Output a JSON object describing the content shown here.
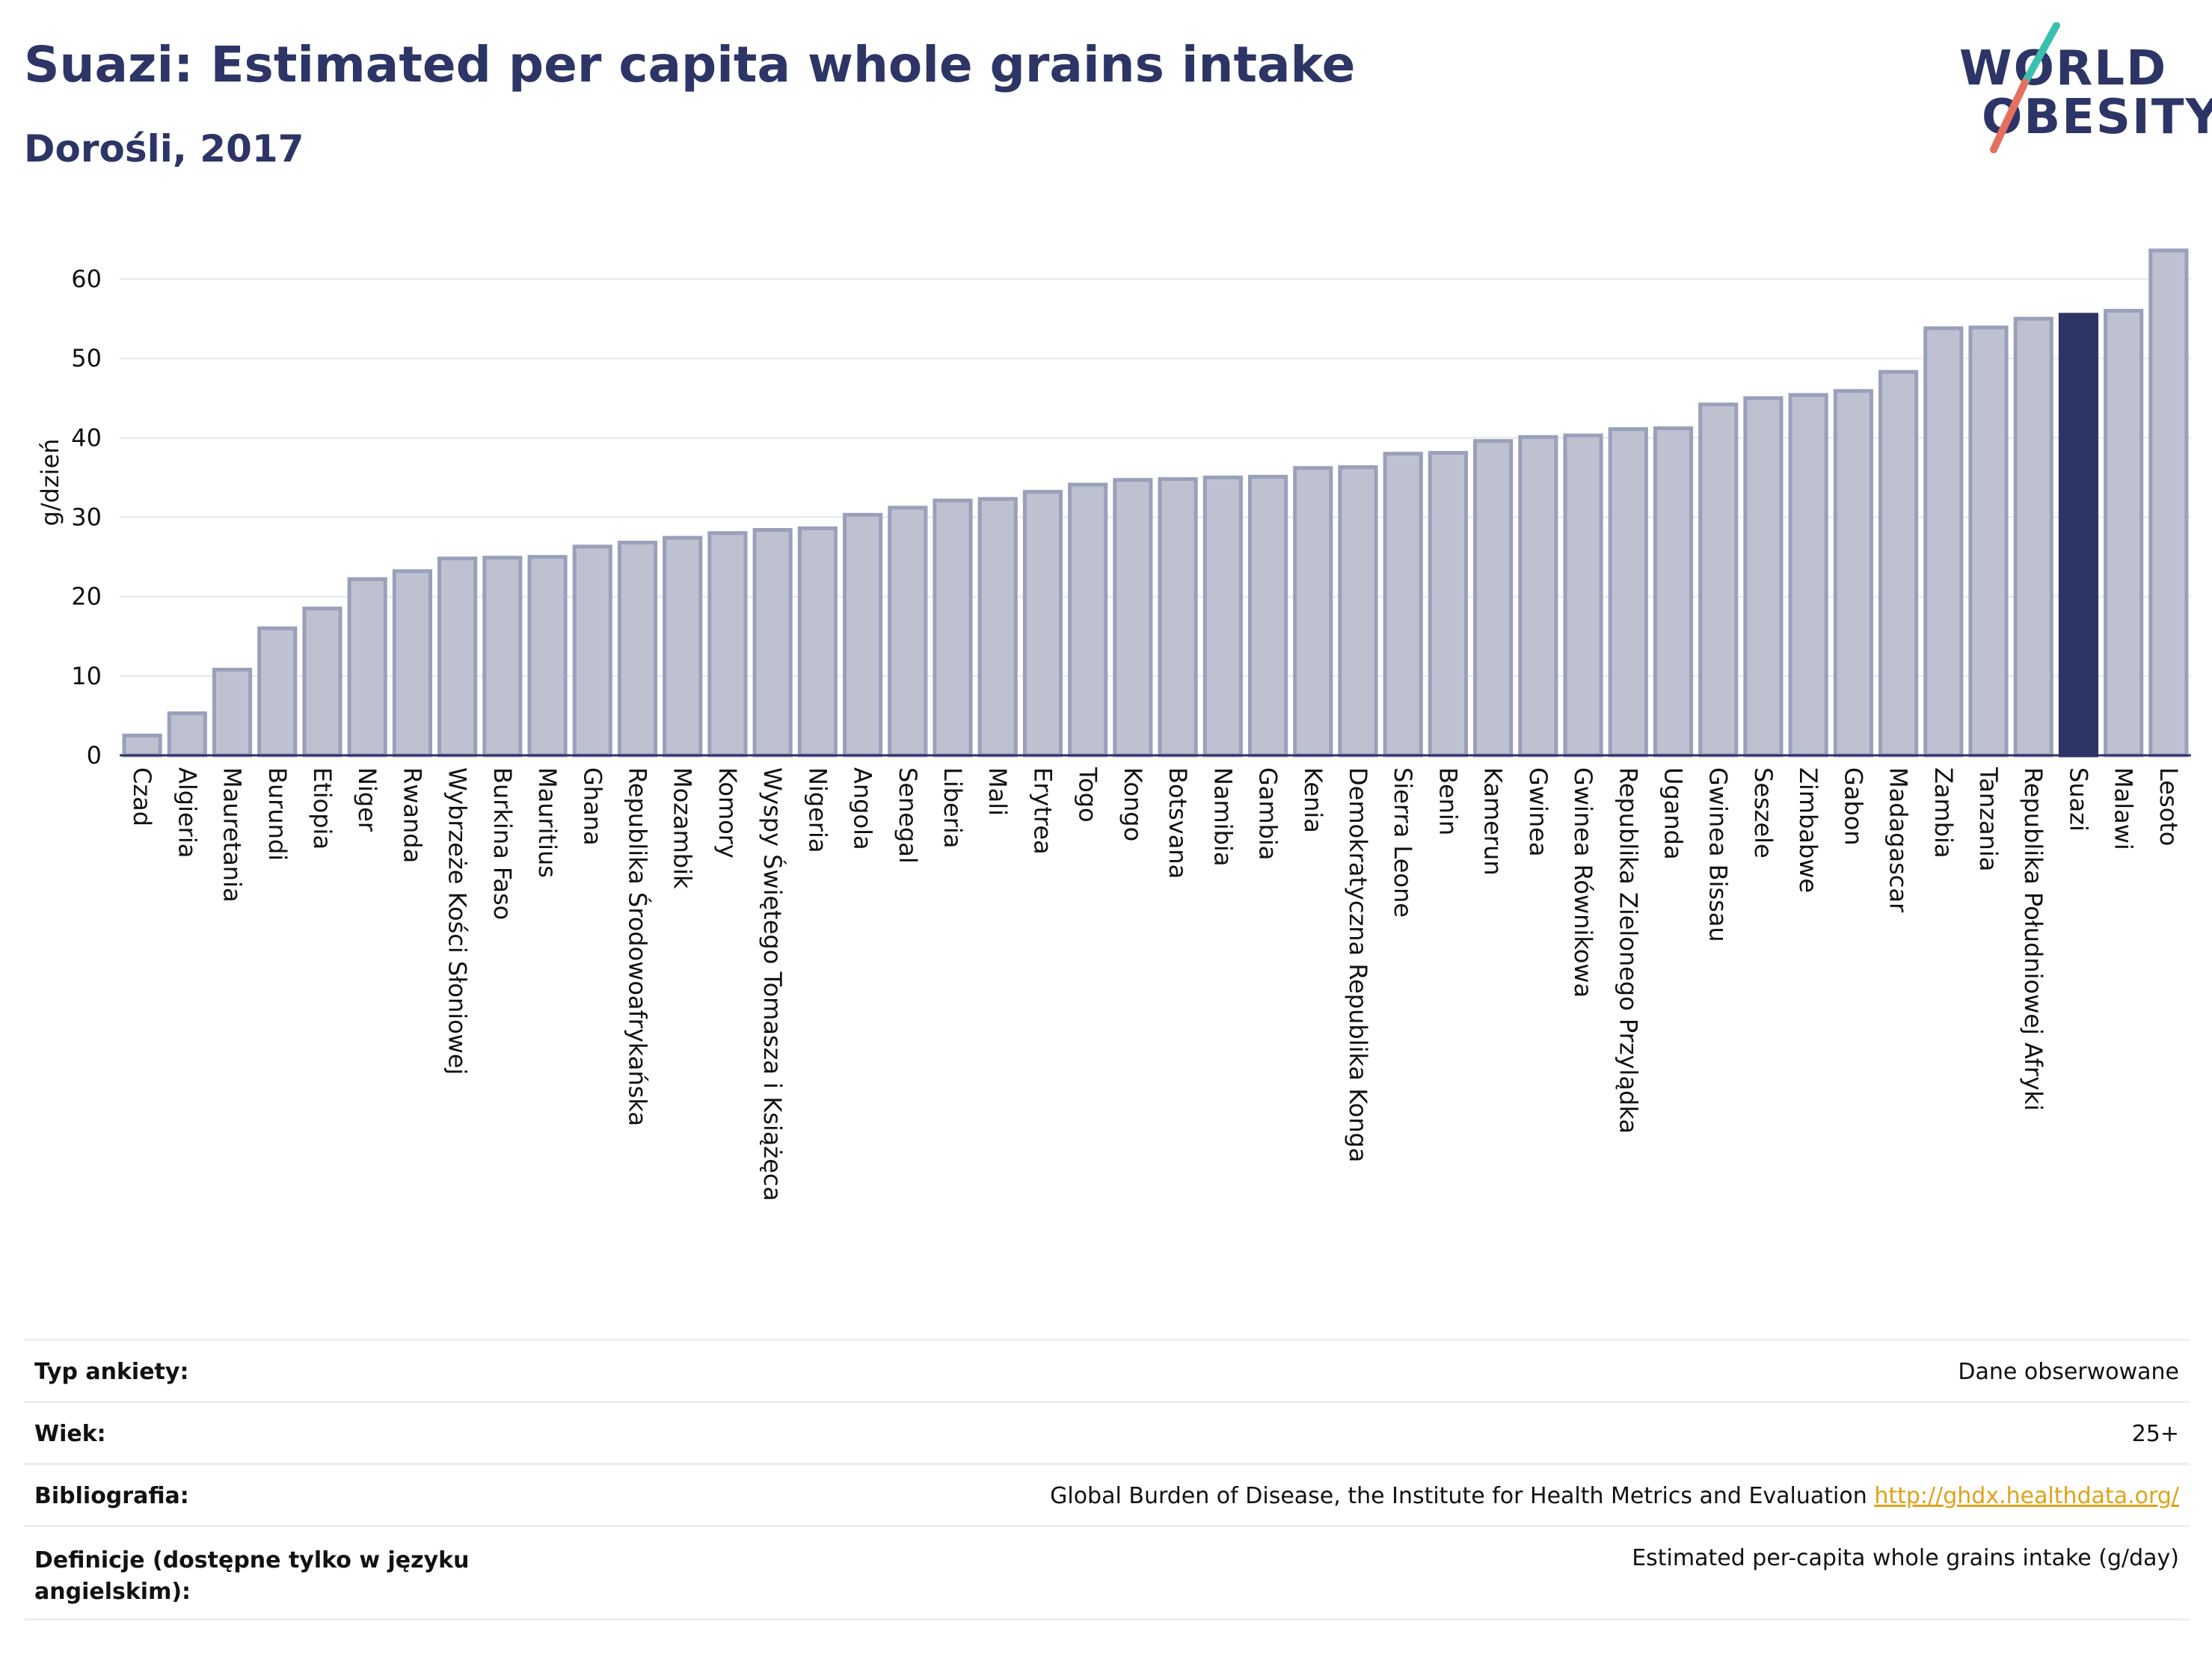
{
  "header": {
    "title": "Suazi: Estimated per capita whole grains intake",
    "subtitle": "Dorośli, 2017",
    "logo_line1": "WORLD",
    "logo_line2": "OBESITY"
  },
  "colors": {
    "title": "#2c3566",
    "bar": "#bdc1d0",
    "bar_edge": "#9aa0ba",
    "highlight": "#2c3566",
    "grid": "#e6e7ee",
    "logo_teal": "#3bbfb0",
    "logo_red": "#e5705f",
    "link": "#e0a21a"
  },
  "chart_data": {
    "type": "bar",
    "ylabel": "g/dzień",
    "ylim": [
      0,
      65
    ],
    "yticks": [
      0,
      10,
      20,
      30,
      40,
      50,
      60
    ],
    "grid": true,
    "highlight": "Suazi",
    "categories": [
      "Czad",
      "Algieria",
      "Mauretania",
      "Burundi",
      "Etiopia",
      "Niger",
      "Rwanda",
      "Wybrzeże Kości Słoniowej",
      "Burkina Faso",
      "Mauritius",
      "Ghana",
      "Republika Środowoafrykańska",
      "Mozambik",
      "Komory",
      "Wyspy Świętego Tomasza i Książęca",
      "Nigeria",
      "Angola",
      "Senegal",
      "Liberia",
      "Mali",
      "Erytrea",
      "Togo",
      "Kongo",
      "Botsvana",
      "Namibia",
      "Gambia",
      "Kenia",
      "Demokratyczna Republika Konga",
      "Sierra Leone",
      "Benin",
      "Kamerun",
      "Gwinea",
      "Gwinea Równikowa",
      "Republika Zielonego Przylądka",
      "Uganda",
      "Gwinea Bissau",
      "Seszele",
      "Zimbabwe",
      "Gabon",
      "Madagascar",
      "Zambia",
      "Tanzania",
      "Republika Południowej Afryki",
      "Suazi",
      "Malawi",
      "Lesoto"
    ],
    "values": [
      2.5,
      5.3,
      10.8,
      16.0,
      18.5,
      22.2,
      23.2,
      24.8,
      24.9,
      25.0,
      26.3,
      26.8,
      27.4,
      28.0,
      28.4,
      28.6,
      30.3,
      31.2,
      32.1,
      32.3,
      33.2,
      34.1,
      34.7,
      34.8,
      35.0,
      35.1,
      36.2,
      36.3,
      38.0,
      38.1,
      39.6,
      40.1,
      40.3,
      41.1,
      41.2,
      44.2,
      45.0,
      45.4,
      45.9,
      48.3,
      53.8,
      53.9,
      55.0,
      55.5,
      56.0,
      63.6
    ]
  },
  "info": {
    "survey_label": "Typ ankiety:",
    "survey_value": "Dane obserwowane",
    "age_label": "Wiek:",
    "age_value": "25+",
    "bib_label": "Bibliografia:",
    "bib_value": "Global Burden of Disease, the Institute for Health Metrics and Evaluation",
    "bib_link": "http://ghdx.healthdata.org/",
    "def_label": "Definicje (dostępne tylko w języku angielskim):",
    "def_value": "Estimated per-capita whole grains intake (g/day)"
  }
}
